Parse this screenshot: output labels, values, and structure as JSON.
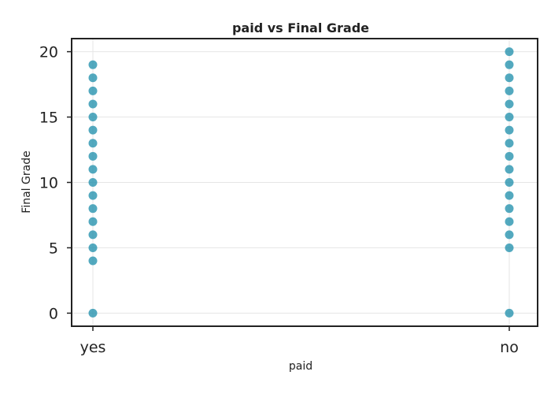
{
  "chart_data": {
    "type": "scatter",
    "title": "paid vs Final Grade",
    "xlabel": "paid",
    "ylabel": "Final Grade",
    "categories": [
      "yes",
      "no"
    ],
    "ylim": [
      -1,
      21
    ],
    "yticks": [
      0,
      5,
      10,
      15,
      20
    ],
    "grid": true,
    "marker_color": "#1a8caa",
    "axis_color": "#222222",
    "grid_color": "#e6e6e6",
    "series": [
      {
        "category": "yes",
        "values": [
          0,
          4,
          5,
          6,
          7,
          8,
          9,
          10,
          11,
          12,
          13,
          14,
          15,
          16,
          17,
          18,
          19
        ]
      },
      {
        "category": "no",
        "values": [
          0,
          5,
          6,
          7,
          8,
          9,
          10,
          11,
          12,
          13,
          14,
          15,
          16,
          17,
          18,
          19,
          20
        ]
      }
    ]
  }
}
